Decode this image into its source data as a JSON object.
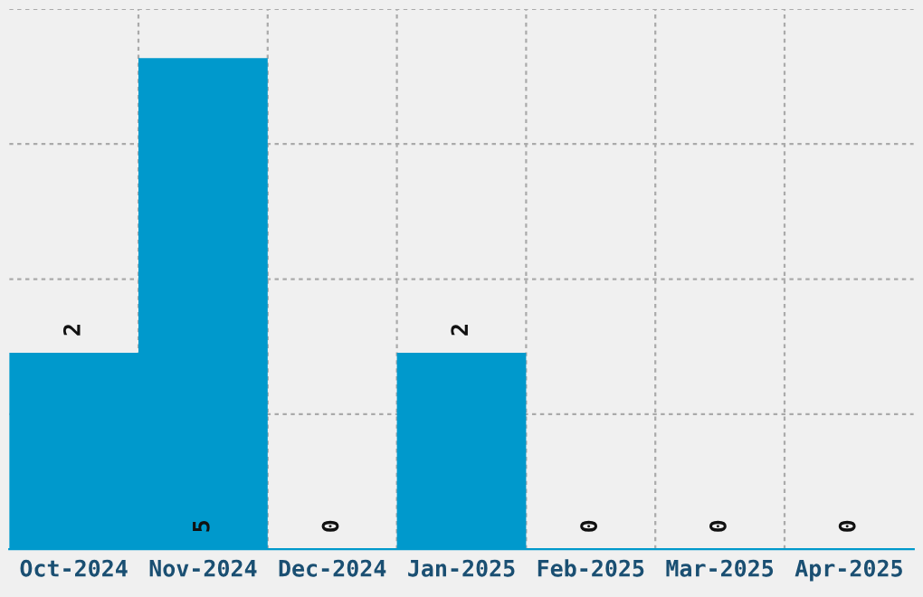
{
  "chart_data": {
    "type": "bar",
    "categories": [
      "Oct-2024",
      "Nov-2024",
      "Dec-2024",
      "Jan-2025",
      "Feb-2025",
      "Mar-2025",
      "Apr-2025"
    ],
    "values": [
      2,
      5,
      0,
      2,
      0,
      0,
      0
    ],
    "color": "#0099cc",
    "ylim": [
      0,
      5.5
    ],
    "yticks": [
      {
        "value": 0,
        "label": null
      },
      {
        "value": 1.375,
        "label": null
      },
      {
        "value": 2.75,
        "label": null
      },
      {
        "value": 4.125,
        "label": null
      },
      {
        "value": 5.5,
        "label": null
      }
    ],
    "grid": true,
    "data_labels": true,
    "tick_labels": "x"
  }
}
